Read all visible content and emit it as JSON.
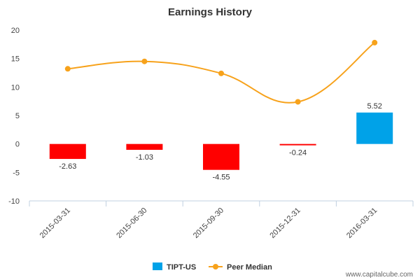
{
  "chart_data": {
    "type": "bar",
    "title": "Earnings History",
    "xlabel": "",
    "ylabel": "",
    "ylim": [
      -10,
      20
    ],
    "yticks": [
      -10,
      -5,
      0,
      5,
      10,
      15,
      20
    ],
    "categories": [
      "2015-03-31",
      "2015-06-30",
      "2015-09-30",
      "2015-12-31",
      "2016-03-31"
    ],
    "series": [
      {
        "name": "TIPT-US",
        "kind": "bar",
        "values": [
          -2.63,
          -1.03,
          -4.55,
          -0.24,
          5.52
        ],
        "labels": [
          "-2.63",
          "-1.03",
          "-4.55",
          "-0.24",
          "5.52"
        ],
        "colors": [
          "#ff0000",
          "#ff0000",
          "#ff0000",
          "#ff0000",
          "#00a2e8"
        ],
        "legend_color": "#00a2e8"
      },
      {
        "name": "Peer Median",
        "kind": "line",
        "values": [
          13.2,
          14.5,
          12.4,
          7.4,
          17.8
        ],
        "color": "#f7a21b"
      }
    ],
    "legend": "bottom-center",
    "grid": false
  },
  "footer": {
    "watermark": "www.capitalcube.com"
  }
}
